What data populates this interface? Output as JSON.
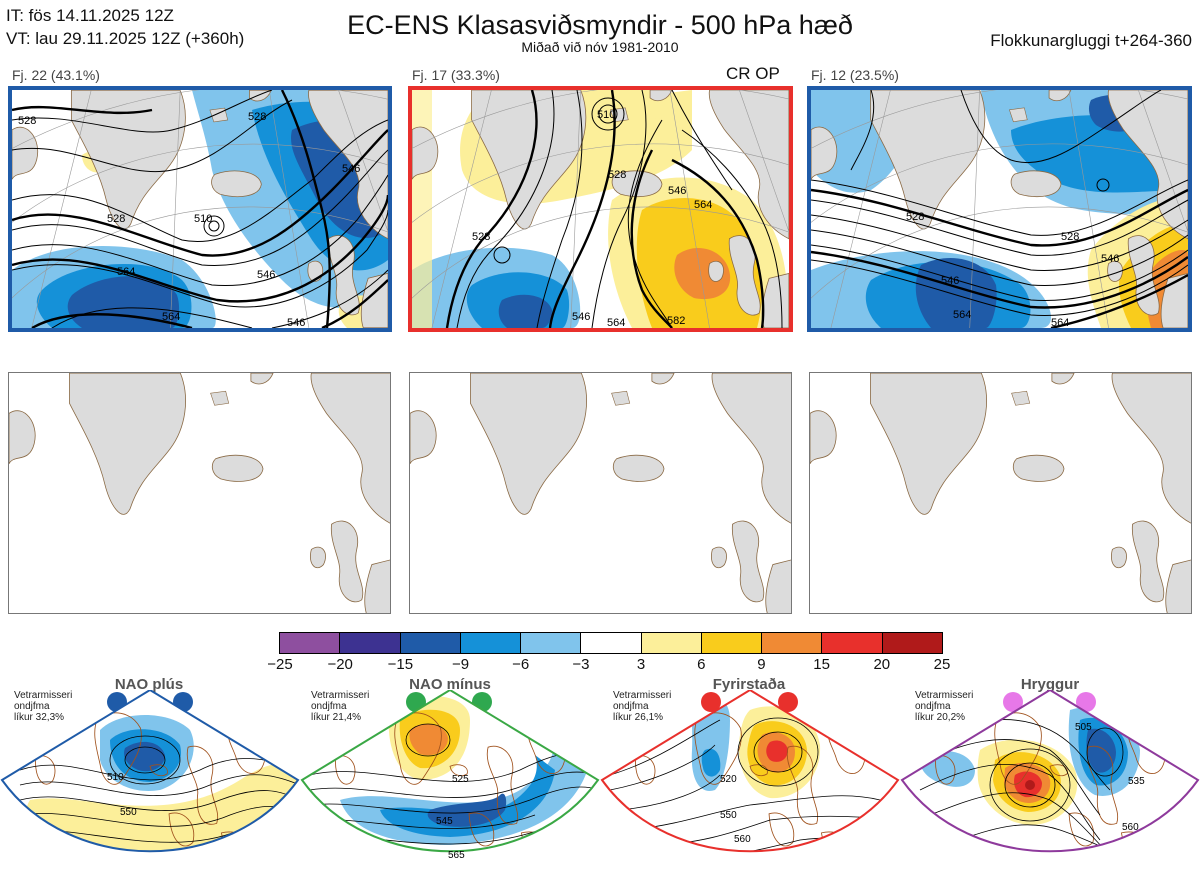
{
  "header": {
    "it_line": "IT: fös 14.11.2025 12Z",
    "vt_line": "VT: lau 29.11.2025 12Z  (+360h)",
    "title": "EC-ENS Klasasviðsmyndir - 500 hPa hæð",
    "subtitle": "Miðað við nóv 1981-2010",
    "window": "Flokkunargluggi t+264-360"
  },
  "panels": [
    {
      "label": "Fj. 22 (43.1%)",
      "border_color": "#1f5ba8",
      "contours": [
        "528",
        "528",
        "510",
        "546",
        "528",
        "546",
        "564",
        "546",
        "564"
      ]
    },
    {
      "label": "Fj. 17 (33.3%)",
      "border_color": "#e8302c",
      "tag": "CR OP",
      "contours": [
        "510",
        "528",
        "546",
        "564",
        "528",
        "546",
        "564",
        "582"
      ]
    },
    {
      "label": "Fj. 12 (23.5%)",
      "border_color": "#1f5ba8",
      "contours": [
        "528",
        "528",
        "546",
        "546",
        "564",
        "564"
      ]
    }
  ],
  "colorbar": {
    "ticks": [
      "−25",
      "−20",
      "−15",
      "−9",
      "−6",
      "−3",
      "3",
      "6",
      "9",
      "15",
      "20",
      "25"
    ],
    "colors": [
      "#8e4f9f",
      "#3d3291",
      "#1f5ba8",
      "#1591d8",
      "#80c4ec",
      "#ffffff",
      "#fcef9a",
      "#f9cc1c",
      "#f08a34",
      "#e8302c",
      "#b01a1a"
    ]
  },
  "regimes": [
    {
      "name": "NAO plús",
      "note": [
        "Vetrarmisseri",
        "ondjfma",
        "líkur 32,3%"
      ],
      "color": "#1f5ba8",
      "dot_color": "#1f5ba8",
      "contours": [
        "510",
        "550"
      ]
    },
    {
      "name": "NAO mínus",
      "note": [
        "Vetrarmisseri",
        "ondjfma",
        "líkur 21,4%"
      ],
      "color": "#3aa845",
      "dot_color": "#2fa84f",
      "contours": [
        "525",
        "545",
        "565"
      ]
    },
    {
      "name": "Fyrirstaða",
      "note": [
        "Vetrarmisseri",
        "ondjfma",
        "líkur 26,1%"
      ],
      "color": "#e8302c",
      "dot_color": "#e8302c",
      "contours": [
        "520",
        "550",
        "560"
      ]
    },
    {
      "name": "Hryggur",
      "note": [
        "Vetrarmisseri",
        "ondjfma",
        "líkur 20,2%"
      ],
      "color": "#8e3a9c",
      "dot_color": "#e778e8",
      "contours": [
        "505",
        "535",
        "560"
      ]
    }
  ]
}
